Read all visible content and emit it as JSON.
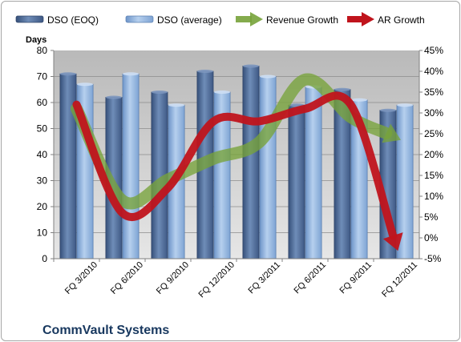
{
  "chart_data": {
    "type": "bar",
    "title": "",
    "footer_title": "CommVault Systems",
    "ylabel": "Days",
    "ylim": [
      0,
      80
    ],
    "yticks": [
      "0",
      "10",
      "20",
      "30",
      "40",
      "50",
      "60",
      "70",
      "80"
    ],
    "y2lim": [
      -5,
      45
    ],
    "y2ticks": [
      "-5%",
      "0%",
      "5%",
      "10%",
      "15%",
      "20%",
      "25%",
      "30%",
      "35%",
      "40%",
      "45%"
    ],
    "categories": [
      "FQ 3/2010",
      "FQ 6/2010",
      "FQ 9/2010",
      "FQ 12/2010",
      "FQ 3/2011",
      "FQ 6/2011",
      "FQ 9/2011",
      "FQ 12/2011"
    ],
    "series": [
      {
        "name": "DSO (EOQ)",
        "kind": "bar",
        "axis": "left",
        "color": "#4f6b97",
        "values": [
          71,
          62,
          64,
          72,
          74,
          59,
          65,
          57
        ]
      },
      {
        "name": "DSO (average)",
        "kind": "bar",
        "axis": "left",
        "color": "#8fb4e3",
        "values": [
          67,
          71,
          59,
          64,
          70,
          66,
          61,
          59
        ]
      },
      {
        "name": "Revenue Growth",
        "kind": "arrow",
        "axis": "right",
        "color": "#77a33a",
        "values": [
          31,
          9,
          14,
          19,
          23,
          38,
          29,
          24
        ]
      },
      {
        "name": "AR Growth",
        "kind": "arrow",
        "axis": "right",
        "color": "#c0141c",
        "values": [
          32,
          6,
          12,
          28,
          28,
          31,
          32,
          -2
        ]
      }
    ],
    "legend_position": "top",
    "grid": true,
    "plot_background": "#c0c0c0"
  }
}
